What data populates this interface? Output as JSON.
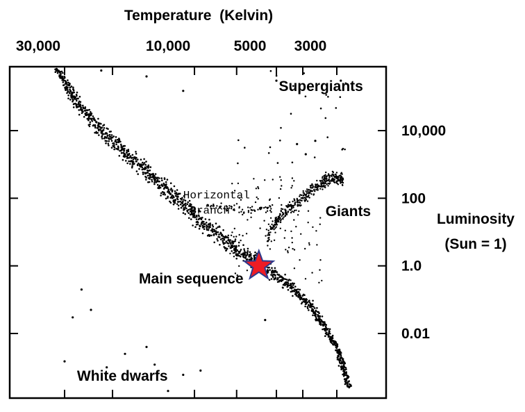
{
  "chart_data": {
    "type": "scatter",
    "title": "Temperature  (Kelvin)",
    "xlabel": "Temperature  (Kelvin)",
    "ylabel_lines": [
      "Luminosity",
      "(Sun = 1)"
    ],
    "x_scale": "log, reversed",
    "y_scale": "log",
    "xlim": [
      40000,
      2500
    ],
    "ylim": [
      0.0001,
      10000000
    ],
    "x_ticks": [
      {
        "value": 30000,
        "label": "30,000"
      },
      {
        "value": 10000,
        "label": "10,000"
      },
      {
        "value": 5000,
        "label": "5000"
      },
      {
        "value": 3000,
        "label": "3000"
      }
    ],
    "y_ticks": [
      {
        "value": 10000,
        "label": "10,000"
      },
      {
        "value": 100,
        "label": "100"
      },
      {
        "value": 1,
        "label": "1.0"
      },
      {
        "value": 0.01,
        "label": "0.01"
      }
    ],
    "grid": false,
    "annotations": [
      {
        "text": "Supergiants",
        "x": 4900,
        "y": 150000
      },
      {
        "text": "Giants",
        "x": 3300,
        "y": 30
      },
      {
        "text": "Horizontal",
        "x": 11000,
        "y": 100,
        "font": "mono"
      },
      {
        "text": "Branch",
        "x": 10400,
        "y": 35,
        "font": "mono"
      },
      {
        "text": "Main sequence",
        "x": 16000,
        "y": 0.3
      },
      {
        "text": "White dwarfs",
        "x": 27000,
        "y": 0.0004
      }
    ],
    "sun": {
      "label": "Sun",
      "x": 5800,
      "y": 1,
      "color": "#ee1c24",
      "outline": "#2e3a8c"
    },
    "series": [
      {
        "region": "main_sequence",
        "points": [
          [
            38000,
            5000000
          ],
          [
            36000,
            3000000
          ],
          [
            34000,
            1500000
          ],
          [
            33000,
            900000
          ],
          [
            32000,
            600000
          ],
          [
            30500,
            350000
          ],
          [
            29000,
            200000
          ],
          [
            28000,
            110000
          ],
          [
            27000,
            70000
          ],
          [
            26000,
            45000
          ],
          [
            25000,
            32000
          ],
          [
            24000,
            21000
          ],
          [
            23000,
            15000
          ],
          [
            22000,
            10000
          ],
          [
            21000,
            7000
          ],
          [
            20000,
            5000
          ],
          [
            19000,
            3500
          ],
          [
            18500,
            2500
          ],
          [
            17500,
            1800
          ],
          [
            16500,
            1200
          ],
          [
            15500,
            850
          ],
          [
            15000,
            600
          ],
          [
            14200,
            420
          ],
          [
            13500,
            300
          ],
          [
            13000,
            210
          ],
          [
            12300,
            150
          ],
          [
            11800,
            105
          ],
          [
            11200,
            75
          ],
          [
            10700,
            52
          ],
          [
            10200,
            37
          ],
          [
            9800,
            26
          ],
          [
            9300,
            19
          ],
          [
            8900,
            14
          ],
          [
            8500,
            10
          ],
          [
            8100,
            7.5
          ],
          [
            7800,
            5.5
          ],
          [
            7400,
            4.2
          ],
          [
            7100,
            3.3
          ],
          [
            6800,
            2.6
          ],
          [
            6500,
            2.0
          ],
          [
            6200,
            1.6
          ],
          [
            5900,
            1.25
          ],
          [
            5600,
            0.95
          ],
          [
            5400,
            0.75
          ],
          [
            5150,
            0.58
          ],
          [
            4900,
            0.45
          ],
          [
            4700,
            0.35
          ],
          [
            4500,
            0.27
          ],
          [
            4300,
            0.2
          ],
          [
            4150,
            0.15
          ],
          [
            4000,
            0.11
          ],
          [
            3850,
            0.08
          ],
          [
            3700,
            0.058
          ],
          [
            3600,
            0.042
          ],
          [
            3500,
            0.03
          ],
          [
            3400,
            0.021
          ],
          [
            3300,
            0.014
          ],
          [
            3200,
            0.009
          ],
          [
            3100,
            0.006
          ],
          [
            3000,
            0.004
          ],
          [
            2950,
            0.0025
          ],
          [
            2900,
            0.0016
          ],
          [
            2850,
            0.001
          ],
          [
            2800,
            0.0006
          ],
          [
            2750,
            0.0004
          ],
          [
            2700,
            0.00025
          ]
        ]
      },
      {
        "region": "giants",
        "points": [
          [
            5400,
            5
          ],
          [
            5200,
            12
          ],
          [
            5000,
            20
          ],
          [
            4800,
            30
          ],
          [
            4600,
            40
          ],
          [
            4400,
            55
          ],
          [
            4200,
            75
          ],
          [
            4000,
            100
          ],
          [
            3850,
            130
          ],
          [
            3700,
            170
          ],
          [
            3550,
            220
          ],
          [
            3400,
            280
          ],
          [
            3300,
            330
          ],
          [
            3200,
            380
          ],
          [
            3100,
            400
          ],
          [
            3000,
            380
          ],
          [
            2900,
            360
          ],
          [
            2850,
            340
          ]
        ]
      },
      {
        "region": "horizontal_branch",
        "points": [
          [
            9000,
            60
          ],
          [
            8500,
            55
          ],
          [
            8000,
            50
          ],
          [
            7500,
            48
          ],
          [
            7000,
            45
          ],
          [
            6500,
            45
          ],
          [
            6000,
            47
          ],
          [
            5500,
            50
          ],
          [
            5200,
            52
          ]
        ]
      },
      {
        "region": "supergiants",
        "points": [
          [
            33000,
            1500000
          ],
          [
            22000,
            600000
          ],
          [
            15000,
            400000
          ],
          [
            11000,
            150000
          ],
          [
            8000,
            2500000
          ],
          [
            6000,
            3000000
          ],
          [
            5000,
            300000
          ],
          [
            4200,
            4000
          ],
          [
            3900,
            2000
          ],
          [
            3600,
            5000
          ],
          [
            3400,
            700000
          ],
          [
            3200,
            2000000
          ],
          [
            3000,
            800000
          ],
          [
            2900,
            300000
          ],
          [
            2800,
            1600000
          ]
        ]
      },
      {
        "region": "white_dwarfs",
        "points": [
          [
            30000,
            0.0015
          ],
          [
            28000,
            0.03
          ],
          [
            26000,
            0.2
          ],
          [
            24000,
            0.05
          ],
          [
            21000,
            0.001
          ],
          [
            18000,
            0.0025
          ],
          [
            16000,
            0.0001
          ],
          [
            15000,
            0.004
          ],
          [
            14000,
            0.0012
          ],
          [
            12500,
            0.0002
          ],
          [
            11000,
            0.0006
          ],
          [
            9500,
            0.0008
          ],
          [
            8000,
            0.0001
          ],
          [
            6500,
            5e-05
          ],
          [
            5500,
            0.025
          ]
        ]
      }
    ]
  }
}
